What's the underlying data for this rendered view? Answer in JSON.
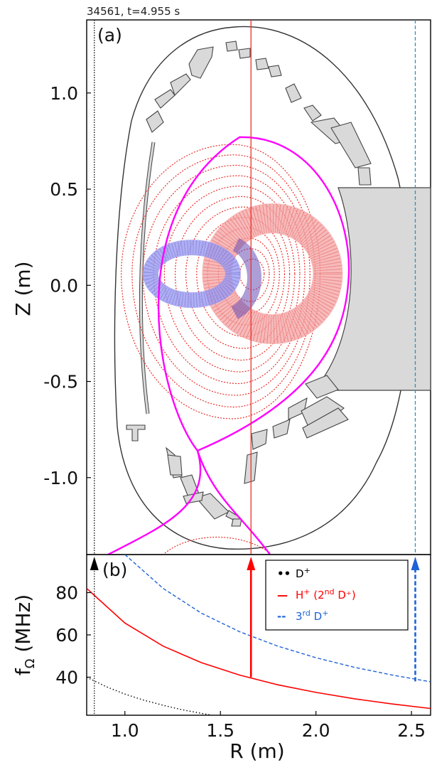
{
  "header": {
    "shot_label": "34561, t=4.955 s"
  },
  "colors": {
    "frame": "#000000",
    "vessel": "#333333",
    "tile_fill": "#d9d9d9",
    "tile_stroke": "#444444",
    "separatrix": "#ff00ff",
    "flux_surfaces": "#e8302a",
    "ion_D": "#000000",
    "ion_H": "#ff0000",
    "ion_3D": "#1e63d6",
    "orbit_H": "#f4a3a3",
    "orbit_D": "#9b9bf0",
    "orbit_D_overlap": "#6a4fb5",
    "right_line": "#2a90c8"
  },
  "chart_data": [
    {
      "panel": "(a)",
      "type": "scatter",
      "ylabel": "Z (m)",
      "xlim": [
        0.8,
        2.6
      ],
      "ylim": [
        -1.4,
        1.38
      ],
      "yticks": [
        "1.0",
        "0.5",
        "0.0",
        "-0.5",
        "-1.0"
      ],
      "ytick_values": [
        1.0,
        0.5,
        0.0,
        -0.5,
        -1.0
      ],
      "vertical_lines": [
        {
          "x": 0.84,
          "style": "dotted",
          "color": "#000000"
        },
        {
          "x": 1.66,
          "style": "solid",
          "color": "#e8302a"
        },
        {
          "x": 2.52,
          "style": "dashed",
          "color": "#2a90c8"
        }
      ],
      "separatrix_x_point": {
        "R": 1.38,
        "Z": -0.86
      },
      "magnetic_axis": {
        "R": 1.68,
        "Z": 0.06
      },
      "separatrix_top": {
        "R": 1.6,
        "Z": 0.77
      },
      "fast_ion_orbits": [
        {
          "species": "H+",
          "center": {
            "R": 1.75,
            "Z": 0.06
          },
          "color": "pink"
        },
        {
          "species": "D+",
          "center": {
            "R": 1.35,
            "Z": 0.06
          },
          "color": "blue"
        }
      ],
      "structures": [
        "vessel-outline",
        "first-wall-tiles",
        "central-column",
        "divertor"
      ]
    },
    {
      "panel": "(b)",
      "type": "line",
      "xlabel": "R (m)",
      "ylabel": "f",
      "ylabel_subscript": "Ω",
      "ylabel_unit": " (MHz)",
      "xlim": [
        0.8,
        2.6
      ],
      "ylim": [
        22,
        98
      ],
      "xticks": [
        "1.0",
        "1.5",
        "2.0",
        "2.5"
      ],
      "xtick_values": [
        1.0,
        1.5,
        2.0,
        2.5
      ],
      "yticks": [
        "80",
        "60",
        "40"
      ],
      "ytick_values": [
        80,
        60,
        40
      ],
      "legend_position": "top-right",
      "legend": [
        {
          "marker": "••",
          "sym": "D",
          "sup": "+",
          "after": "",
          "after_sup": "",
          "tail": "",
          "color": "#000000"
        },
        {
          "marker": "—",
          "sym": "H",
          "sup": "+",
          "after": " (2",
          "after_sup": "nd",
          "tail": " D⁺)",
          "color": "#ff0000"
        },
        {
          "marker": "--",
          "sym": "3",
          "sup": "rd",
          "after": " D",
          "after_sup": "+",
          "tail": "",
          "color": "#1e63d6"
        }
      ],
      "series": [
        {
          "key": "D+",
          "style": "dotted",
          "color": "#000000",
          "x": [
            0.8,
            0.9,
            1.0,
            1.1,
            1.2,
            1.3,
            1.4,
            1.5,
            1.6,
            1.7,
            1.8
          ],
          "y": [
            40.0,
            35.6,
            32.0,
            29.1,
            26.7,
            24.6,
            22.9,
            21.3,
            20.0,
            18.8,
            17.8
          ]
        },
        {
          "key": "H+ (2nd D+)",
          "style": "solid",
          "color": "#ff0000",
          "x": [
            0.8,
            1.0,
            1.2,
            1.4,
            1.6,
            1.8,
            2.0,
            2.2,
            2.4,
            2.6
          ],
          "y": [
            82.0,
            65.6,
            54.7,
            46.9,
            41.0,
            36.4,
            32.8,
            29.8,
            27.3,
            25.2
          ]
        },
        {
          "key": "3rd D+",
          "style": "dashed",
          "color": "#1e63d6",
          "x": [
            1.0,
            1.2,
            1.4,
            1.6,
            1.8,
            2.0,
            2.2,
            2.4,
            2.6
          ],
          "y": [
            98.0,
            82.0,
            70.3,
            61.5,
            54.7,
            49.2,
            44.7,
            41.0,
            37.8
          ]
        }
      ],
      "arrows": [
        {
          "x": 0.84,
          "y_from": 22,
          "color": "#000000",
          "style": "dotted"
        },
        {
          "x": 1.66,
          "y_from": 40,
          "color": "#ff0000",
          "style": "solid"
        },
        {
          "x": 2.52,
          "y_from": 38,
          "color": "#1e63d6",
          "style": "dashed"
        }
      ]
    }
  ],
  "panel_labels": {
    "a": "(a)",
    "b": "(b)"
  },
  "axis_labels": {
    "z": "Z (m)",
    "r": "R (m)"
  }
}
